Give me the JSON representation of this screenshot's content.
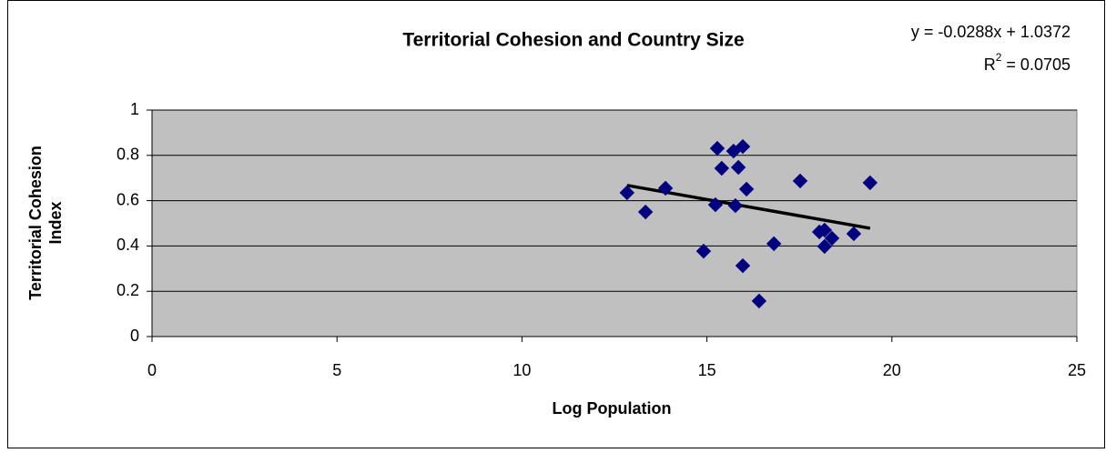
{
  "chart_data": {
    "type": "scatter",
    "title": "Territorial Cohesion and Country Size",
    "xlabel": "Log Population",
    "ylabel": [
      "Territorial Cohesion",
      "Index"
    ],
    "x": [
      12.84,
      13.34,
      13.88,
      14.91,
      15.23,
      15.28,
      15.4,
      15.72,
      15.77,
      15.85,
      15.97,
      15.97,
      16.07,
      16.41,
      16.81,
      17.52,
      18.04,
      18.18,
      18.18,
      18.38,
      18.97,
      19.41
    ],
    "values": [
      0.635,
      0.55,
      0.655,
      0.377,
      0.582,
      0.831,
      0.743,
      0.819,
      0.578,
      0.747,
      0.839,
      0.313,
      0.651,
      0.157,
      0.41,
      0.687,
      0.462,
      0.47,
      0.398,
      0.434,
      0.454,
      0.679
    ],
    "color": "#000080",
    "xlim": [
      0,
      25
    ],
    "xticks": [
      0,
      5,
      10,
      15,
      20,
      25
    ],
    "ylim": [
      0,
      1
    ],
    "yticks": [
      0,
      0.2,
      0.4,
      0.6,
      0.8,
      1
    ],
    "grid": true,
    "trendline": {
      "slope": -0.0288,
      "intercept": 1.0372,
      "equation": "y = -0.0288x + 1.0372",
      "r_squared": {
        "prefix": "R",
        "sup": "2",
        "text": " = 0.0705"
      }
    }
  }
}
